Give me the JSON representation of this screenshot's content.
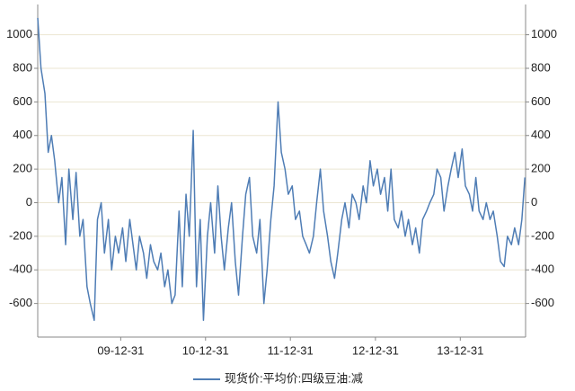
{
  "chart_data": {
    "type": "line",
    "x": [
      "09-01-08",
      "09-01-22",
      "09-02-08",
      "09-02-22",
      "09-03-08",
      "09-03-22",
      "09-04-08",
      "09-04-22",
      "09-05-08",
      "09-05-22",
      "09-06-08",
      "09-06-22",
      "09-07-08",
      "09-07-22",
      "09-08-08",
      "09-08-22",
      "09-09-08",
      "09-09-22",
      "09-10-08",
      "09-10-22",
      "09-11-08",
      "09-11-22",
      "09-12-08",
      "09-12-22",
      "10-01-08",
      "10-01-22",
      "10-02-08",
      "10-02-22",
      "10-03-08",
      "10-03-22",
      "10-04-08",
      "10-04-22",
      "10-05-08",
      "10-05-22",
      "10-06-08",
      "10-06-22",
      "10-07-08",
      "10-07-22",
      "10-08-08",
      "10-08-22",
      "10-09-08",
      "10-09-22",
      "10-10-08",
      "10-10-22",
      "10-11-08",
      "10-11-22",
      "10-12-08",
      "10-12-22",
      "11-01-08",
      "11-01-22",
      "11-02-08",
      "11-02-22",
      "11-03-08",
      "11-03-22",
      "11-04-08",
      "11-04-22",
      "11-05-08",
      "11-05-22",
      "11-06-08",
      "11-06-22",
      "11-07-08",
      "11-07-22",
      "11-08-08",
      "11-08-22",
      "11-09-08",
      "11-09-22",
      "11-10-08",
      "11-10-22",
      "11-11-08",
      "11-11-22",
      "11-12-08",
      "11-12-22",
      "12-01-08",
      "12-01-22",
      "12-02-08",
      "12-02-22",
      "12-03-08",
      "12-03-22",
      "12-04-08",
      "12-04-22",
      "12-05-08",
      "12-05-22",
      "12-06-08",
      "12-06-22",
      "12-07-08",
      "12-07-22",
      "12-08-08",
      "12-08-22",
      "12-09-08",
      "12-09-22",
      "12-10-08",
      "12-10-22",
      "12-11-08",
      "12-11-22",
      "12-12-08",
      "12-12-22",
      "13-01-08",
      "13-01-22",
      "13-02-08",
      "13-02-22",
      "13-03-08",
      "13-03-22",
      "13-04-08",
      "13-04-22",
      "13-05-08",
      "13-05-22",
      "13-06-08",
      "13-06-22",
      "13-07-08",
      "13-07-22",
      "13-08-08",
      "13-08-22",
      "13-09-08",
      "13-09-22",
      "13-10-08",
      "13-10-22",
      "13-11-08",
      "13-11-22",
      "13-12-08",
      "13-12-22",
      "14-01-08",
      "14-01-22",
      "14-02-08",
      "14-02-22",
      "14-03-08",
      "14-03-22",
      "14-04-08",
      "14-04-22",
      "14-05-08",
      "14-05-22",
      "14-06-08",
      "14-06-22",
      "14-07-08",
      "14-07-22",
      "14-08-08",
      "14-08-22",
      "14-09-08",
      "14-09-22",
      "14-10-05"
    ],
    "series": [
      {
        "name": "现货价:平均价:四级豆油:减",
        "color": "#4f7db5",
        "values": [
          1100,
          800,
          650,
          300,
          400,
          250,
          0,
          150,
          -250,
          200,
          -100,
          180,
          -200,
          -100,
          -500,
          -600,
          -700,
          -100,
          0,
          -300,
          -100,
          -400,
          -200,
          -300,
          -150,
          -350,
          -100,
          -250,
          -400,
          -200,
          -300,
          -450,
          -250,
          -350,
          -400,
          -300,
          -500,
          -400,
          -600,
          -550,
          -50,
          -500,
          50,
          -200,
          430,
          -500,
          -100,
          -700,
          -200,
          0,
          -300,
          100,
          -200,
          -400,
          -150,
          0,
          -350,
          -550,
          -200,
          50,
          150,
          -200,
          -300,
          -100,
          -600,
          -400,
          -100,
          100,
          600,
          300,
          200,
          50,
          100,
          -100,
          -50,
          -200,
          -250,
          -300,
          -200,
          0,
          200,
          -50,
          -200,
          -350,
          -450,
          -300,
          -100,
          0,
          -150,
          50,
          0,
          -100,
          100,
          0,
          250,
          100,
          200,
          50,
          150,
          -50,
          200,
          -100,
          -150,
          -50,
          -200,
          -100,
          -250,
          -150,
          -300,
          -100,
          -50,
          0,
          50,
          200,
          150,
          -50,
          100,
          200,
          300,
          150,
          320,
          100,
          50,
          -50,
          150,
          -50,
          -100,
          0,
          -100,
          -50,
          -200,
          -350,
          -380,
          -200,
          -250,
          -150,
          -250,
          -100,
          150
        ]
      }
    ],
    "xlim": [
      "09-01-08",
      "14-10-08"
    ],
    "xticks": [
      "09-12-31",
      "10-12-31",
      "11-12-31",
      "12-12-31",
      "13-12-31"
    ],
    "ylim": [
      -800,
      1180
    ],
    "yticks": [
      -600,
      -400,
      -200,
      0,
      200,
      400,
      600,
      800,
      1000
    ],
    "y2lim": [
      -800,
      1180
    ],
    "y2ticks": [
      -600,
      -400,
      -200,
      0,
      200,
      400,
      600,
      800,
      1000
    ],
    "grid": true
  }
}
